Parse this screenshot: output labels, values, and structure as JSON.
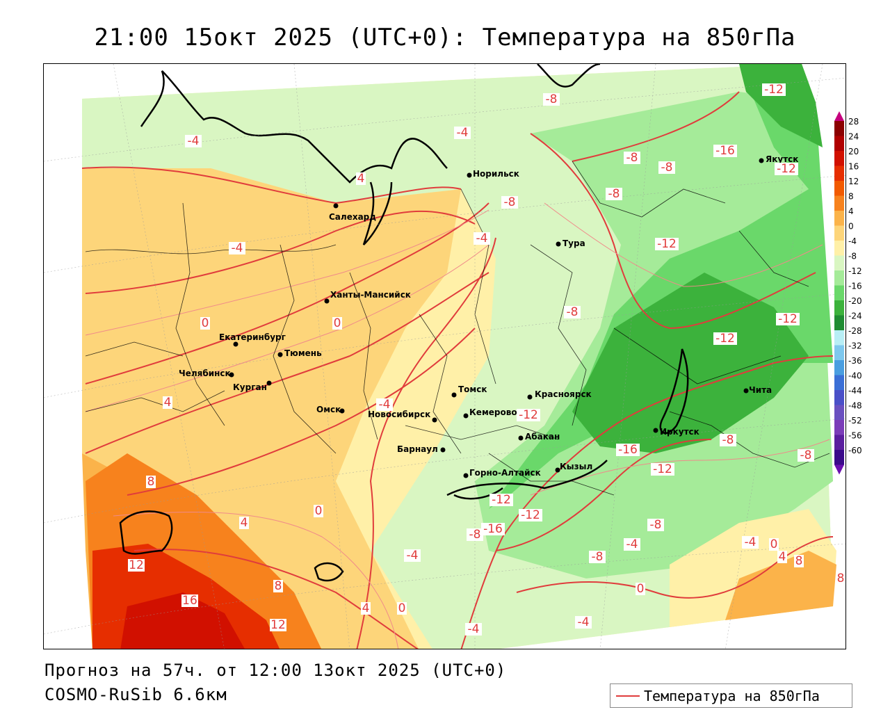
{
  "title": "21:00 15окт 2025 (UTC+0): Температура на 850гПа",
  "footer": {
    "forecast": "Прогноз на 57ч. от 12:00 13окт 2025 (UTC+0)",
    "model": "COSMO-RuSib 6.6км"
  },
  "legend": {
    "label": "Температура на 850гПа",
    "color": "#e03c3c"
  },
  "colorbar": {
    "ticks": [
      "28",
      "24",
      "20",
      "16",
      "12",
      "8",
      "4",
      "0",
      "-4",
      "-8",
      "-12",
      "-16",
      "-20",
      "-24",
      "-28",
      "-32",
      "-36",
      "-40",
      "-44",
      "-48",
      "-52",
      "-56",
      "-60"
    ],
    "colors": [
      "#8b0000",
      "#b00000",
      "#d11000",
      "#e62e00",
      "#f25a00",
      "#f7821d",
      "#fbb34a",
      "#fdd57a",
      "#fff0a8",
      "#d9f6c2",
      "#a5eb99",
      "#6ad86a",
      "#3cb23c",
      "#1f8c32",
      "#b8eef5",
      "#7ec8ee",
      "#4a9ee0",
      "#3b6fd6",
      "#4a4fc8",
      "#6a50c0",
      "#7a3cb8",
      "#5a1e9e",
      "#3a0a8a"
    ],
    "top_cap": "#c6007e",
    "bottom_cap": "#6a0fb0"
  },
  "cities": [
    {
      "name": "Норильск"
    },
    {
      "name": "Салехард"
    },
    {
      "name": "Тура"
    },
    {
      "name": "Якутск"
    },
    {
      "name": "Ханты-Мансийск"
    },
    {
      "name": "Екатеринбург"
    },
    {
      "name": "Тюмень"
    },
    {
      "name": "Челябинск"
    },
    {
      "name": "Курган"
    },
    {
      "name": "Омск"
    },
    {
      "name": "Новосибирск"
    },
    {
      "name": "Томск"
    },
    {
      "name": "Кемерово"
    },
    {
      "name": "Красноярск"
    },
    {
      "name": "Барнаул"
    },
    {
      "name": "Абакан"
    },
    {
      "name": "Горно-Алтайск"
    },
    {
      "name": "Кызыл"
    },
    {
      "name": "Иркутск"
    },
    {
      "name": "Чита"
    }
  ],
  "contour_labels": [
    "-4",
    "-4",
    "4",
    "-4",
    "-8",
    "-8",
    "-8",
    "-8",
    "-8",
    "-12",
    "-12",
    "-12",
    "-12",
    "-12",
    "-4",
    "0",
    "0",
    "4",
    "-4",
    "-8",
    "-12",
    "-16",
    "-12",
    "-8",
    "-8",
    "8",
    "4",
    "0",
    "12",
    "16",
    "8",
    "12",
    "4",
    "0",
    "-4",
    "-16",
    "-8",
    "-12",
    "-12",
    "-4",
    "-8",
    "-4",
    "-8",
    "0",
    "-4",
    "0",
    "4",
    "8",
    "8",
    "-16",
    "-4"
  ]
}
